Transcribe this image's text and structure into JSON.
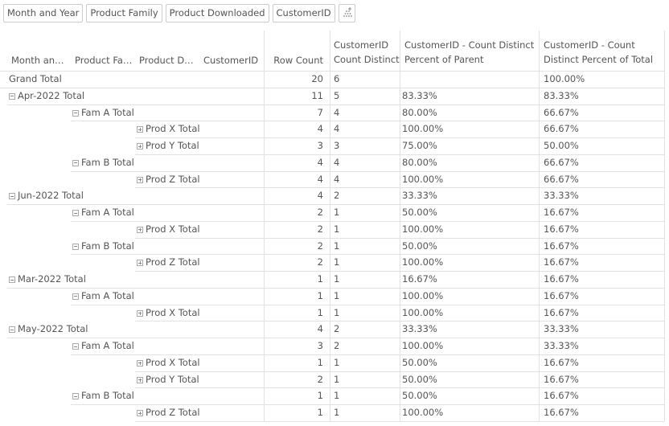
{
  "table": {
    "filters": [
      "Month and Year",
      "Product Family",
      "Product Downloaded",
      "CustomerID"
    ],
    "columns": [
      "Month an…",
      "Product Fa…",
      "Product D…",
      "CustomerID",
      "Row Count",
      "CustomerID Count Distinct",
      "CustomerID - Count Distinct Percent of Parent",
      "CustomerID - Count Distinct Percent of Total"
    ],
    "grand_total": {
      "label": "Grand Total",
      "row_count": 20,
      "count_distinct": 6,
      "percent_of_total": "100.00%"
    },
    "rows": [
      {
        "label": "Apr-2022 Total",
        "row_count": 11,
        "count_distinct": 5,
        "percent_of_parent": "83.33%",
        "percent_of_total": "83.33%",
        "children": [
          {
            "label": "Fam A Total",
            "row_count": 7,
            "count_distinct": 4,
            "percent_of_parent": "80.00%",
            "percent_of_total": "66.67%",
            "children": [
              {
                "label": "Prod X Total",
                "row_count": 4,
                "count_distinct": 4,
                "percent_of_parent": "100.00%",
                "percent_of_total": "66.67%"
              },
              {
                "label": "Prod Y Total",
                "row_count": 3,
                "count_distinct": 3,
                "percent_of_parent": "75.00%",
                "percent_of_total": "50.00%"
              }
            ]
          },
          {
            "label": "Fam B Total",
            "row_count": 4,
            "count_distinct": 4,
            "percent_of_parent": "80.00%",
            "percent_of_total": "66.67%",
            "children": [
              {
                "label": "Prod Z Total",
                "row_count": 4,
                "count_distinct": 4,
                "percent_of_parent": "100.00%",
                "percent_of_total": "66.67%"
              }
            ]
          }
        ]
      },
      {
        "label": "Jun-2022 Total",
        "row_count": 4,
        "count_distinct": 2,
        "percent_of_parent": "33.33%",
        "percent_of_total": "33.33%",
        "children": [
          {
            "label": "Fam A Total",
            "row_count": 2,
            "count_distinct": 1,
            "percent_of_parent": "50.00%",
            "percent_of_total": "16.67%",
            "children": [
              {
                "label": "Prod X Total",
                "row_count": 2,
                "count_distinct": 1,
                "percent_of_parent": "100.00%",
                "percent_of_total": "16.67%"
              }
            ]
          },
          {
            "label": "Fam B Total",
            "row_count": 2,
            "count_distinct": 1,
            "percent_of_parent": "50.00%",
            "percent_of_total": "16.67%",
            "children": [
              {
                "label": "Prod Z Total",
                "row_count": 2,
                "count_distinct": 1,
                "percent_of_parent": "100.00%",
                "percent_of_total": "16.67%"
              }
            ]
          }
        ]
      },
      {
        "label": "Mar-2022 Total",
        "row_count": 1,
        "count_distinct": 1,
        "percent_of_parent": "16.67%",
        "percent_of_total": "16.67%",
        "children": [
          {
            "label": "Fam A Total",
            "row_count": 1,
            "count_distinct": 1,
            "percent_of_parent": "100.00%",
            "percent_of_total": "16.67%",
            "children": [
              {
                "label": "Prod X Total",
                "row_count": 1,
                "count_distinct": 1,
                "percent_of_parent": "100.00%",
                "percent_of_total": "16.67%"
              }
            ]
          }
        ]
      },
      {
        "label": "May-2022 Total",
        "row_count": 4,
        "count_distinct": 2,
        "percent_of_parent": "33.33%",
        "percent_of_total": "33.33%",
        "children": [
          {
            "label": "Fam A Total",
            "row_count": 3,
            "count_distinct": 2,
            "percent_of_parent": "100.00%",
            "percent_of_total": "33.33%",
            "children": [
              {
                "label": "Prod X Total",
                "row_count": 1,
                "count_distinct": 1,
                "percent_of_parent": "50.00%",
                "percent_of_total": "16.67%"
              },
              {
                "label": "Prod Y Total",
                "row_count": 2,
                "count_distinct": 1,
                "percent_of_parent": "50.00%",
                "percent_of_total": "16.67%"
              }
            ]
          },
          {
            "label": "Fam B Total",
            "row_count": 1,
            "count_distinct": 1,
            "percent_of_parent": "50.00%",
            "percent_of_total": "16.67%",
            "children": [
              {
                "label": "Prod Z Total",
                "row_count": 1,
                "count_distinct": 1,
                "percent_of_parent": "100.00%",
                "percent_of_total": "16.67%"
              }
            ]
          }
        ]
      }
    ]
  }
}
